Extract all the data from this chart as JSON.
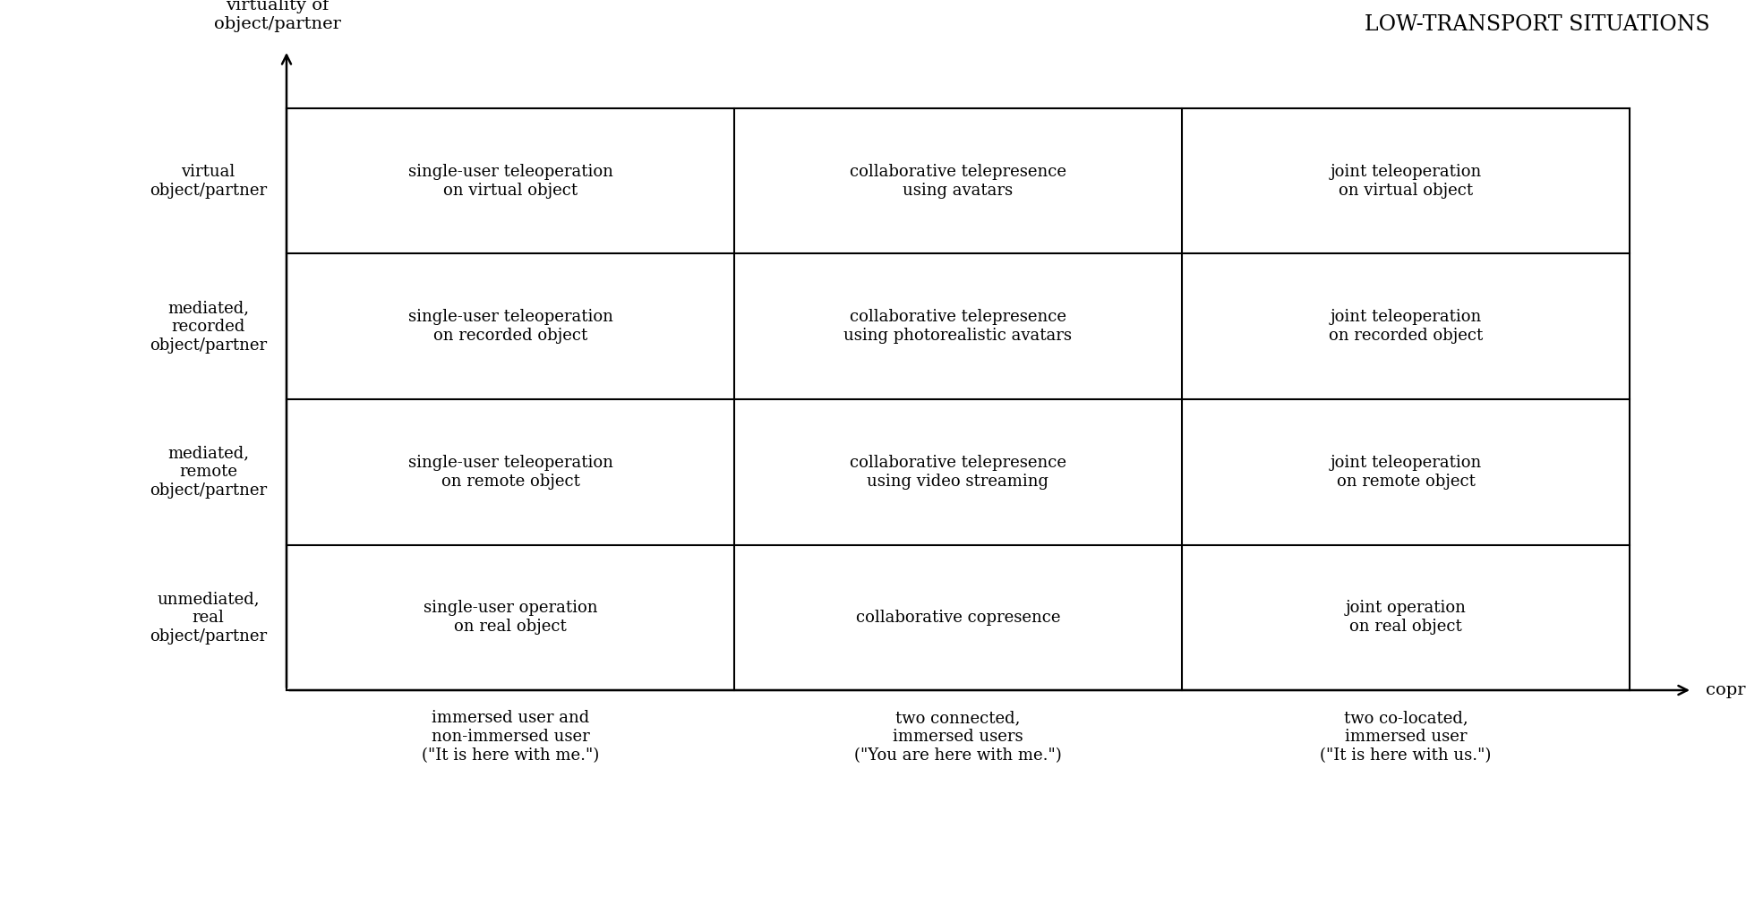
{
  "title": "LOW-TRANSPORT SITUATIONS",
  "x_axis_label": "copresence",
  "y_axis_label": "virtuality of\nobject/partner",
  "background_color": "#ffffff",
  "text_color": "#000000",
  "row_labels": [
    "virtual\nobject/partner",
    "mediated,\nrecorded\nobject/partner",
    "mediated,\nremote\nobject/partner",
    "unmediated,\nreal\nobject/partner"
  ],
  "col_labels": [
    "immersed user and\nnon-immersed user\n(\"It is here with me.\")",
    "two connected,\nimmersed users\n(\"You are here with me.\")",
    "two co-located,\nimmersed user\n(\"It is here with us.\")"
  ],
  "cell_texts": [
    [
      "single-user teleoperation\non virtual object",
      "collaborative telepresence\nusing avatars",
      "joint teleoperation\non virtual object"
    ],
    [
      "single-user teleoperation\non recorded object",
      "collaborative telepresence\nusing photorealistic avatars",
      "joint teleoperation\non recorded object"
    ],
    [
      "single-user teleoperation\non remote object",
      "collaborative telepresence\nusing video streaming",
      "joint teleoperation\non remote object"
    ],
    [
      "single-user operation\non real object",
      "collaborative copresence",
      "joint operation\non real object"
    ]
  ],
  "font_size_cells": 13,
  "font_size_axis_labels": 14,
  "font_size_row_labels": 13,
  "font_size_col_labels": 13,
  "font_size_title": 17,
  "grid_color": "#000000",
  "grid_linewidth": 1.5
}
